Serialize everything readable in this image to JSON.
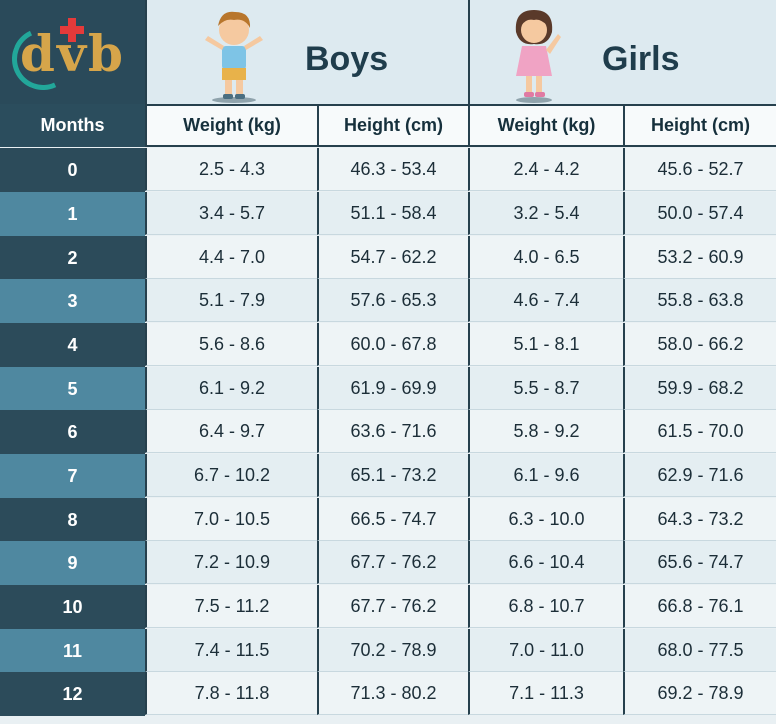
{
  "logo": {
    "text": "dvb"
  },
  "groups": {
    "boys": {
      "title": "Boys"
    },
    "girls": {
      "title": "Girls"
    }
  },
  "columns": {
    "months": "Months",
    "boys_weight": "Weight (kg)",
    "boys_height": "Height (cm)",
    "girls_weight": "Weight (kg)",
    "girls_height": "Height (cm)"
  },
  "rows": [
    {
      "month": "0",
      "boys_weight": "2.5 - 4.3",
      "boys_height": "46.3 - 53.4",
      "girls_weight": "2.4 - 4.2",
      "girls_height": "45.6 - 52.7"
    },
    {
      "month": "1",
      "boys_weight": "3.4 - 5.7",
      "boys_height": "51.1 - 58.4",
      "girls_weight": "3.2 - 5.4",
      "girls_height": "50.0 - 57.4"
    },
    {
      "month": "2",
      "boys_weight": "4.4 - 7.0",
      "boys_height": "54.7 - 62.2",
      "girls_weight": "4.0 - 6.5",
      "girls_height": "53.2 - 60.9"
    },
    {
      "month": "3",
      "boys_weight": "5.1 - 7.9",
      "boys_height": "57.6 - 65.3",
      "girls_weight": "4.6 - 7.4",
      "girls_height": "55.8 - 63.8"
    },
    {
      "month": "4",
      "boys_weight": "5.6 - 8.6",
      "boys_height": "60.0 - 67.8",
      "girls_weight": "5.1 - 8.1",
      "girls_height": "58.0 - 66.2"
    },
    {
      "month": "5",
      "boys_weight": "6.1 - 9.2",
      "boys_height": "61.9 - 69.9",
      "girls_weight": "5.5 - 8.7",
      "girls_height": "59.9 - 68.2"
    },
    {
      "month": "6",
      "boys_weight": "6.4 - 9.7",
      "boys_height": "63.6 - 71.6",
      "girls_weight": "5.8 - 9.2",
      "girls_height": "61.5 - 70.0"
    },
    {
      "month": "7",
      "boys_weight": "6.7 - 10.2",
      "boys_height": "65.1 - 73.2",
      "girls_weight": "6.1 - 9.6",
      "girls_height": "62.9 - 71.6"
    },
    {
      "month": "8",
      "boys_weight": "7.0 - 10.5",
      "boys_height": "66.5 - 74.7",
      "girls_weight": "6.3 - 10.0",
      "girls_height": "64.3 - 73.2"
    },
    {
      "month": "9",
      "boys_weight": "7.2 - 10.9",
      "boys_height": "67.7 - 76.2",
      "girls_weight": "6.6 - 10.4",
      "girls_height": "65.6 - 74.7"
    },
    {
      "month": "10",
      "boys_weight": "7.5 - 11.2",
      "boys_height": "67.7 - 76.2",
      "girls_weight": "6.8 - 10.7",
      "girls_height": "66.8 - 76.1"
    },
    {
      "month": "11",
      "boys_weight": "7.4 - 11.5",
      "boys_height": "70.2 - 78.9",
      "girls_weight": "7.0 - 11.0",
      "girls_height": "68.0 - 77.5"
    },
    {
      "month": "12",
      "boys_weight": "7.8 - 11.8",
      "boys_height": "71.3 - 80.2",
      "girls_weight": "7.1 - 11.3",
      "girls_height": "69.2 - 78.9"
    }
  ],
  "colors": {
    "dark_band": "#2c4b5a",
    "light_band": "#4f88a0",
    "header_text": "#1f3d4c",
    "logo_gold": "#d6a54a",
    "logo_teal": "#22a79a",
    "logo_cross": "#e53a3a"
  }
}
